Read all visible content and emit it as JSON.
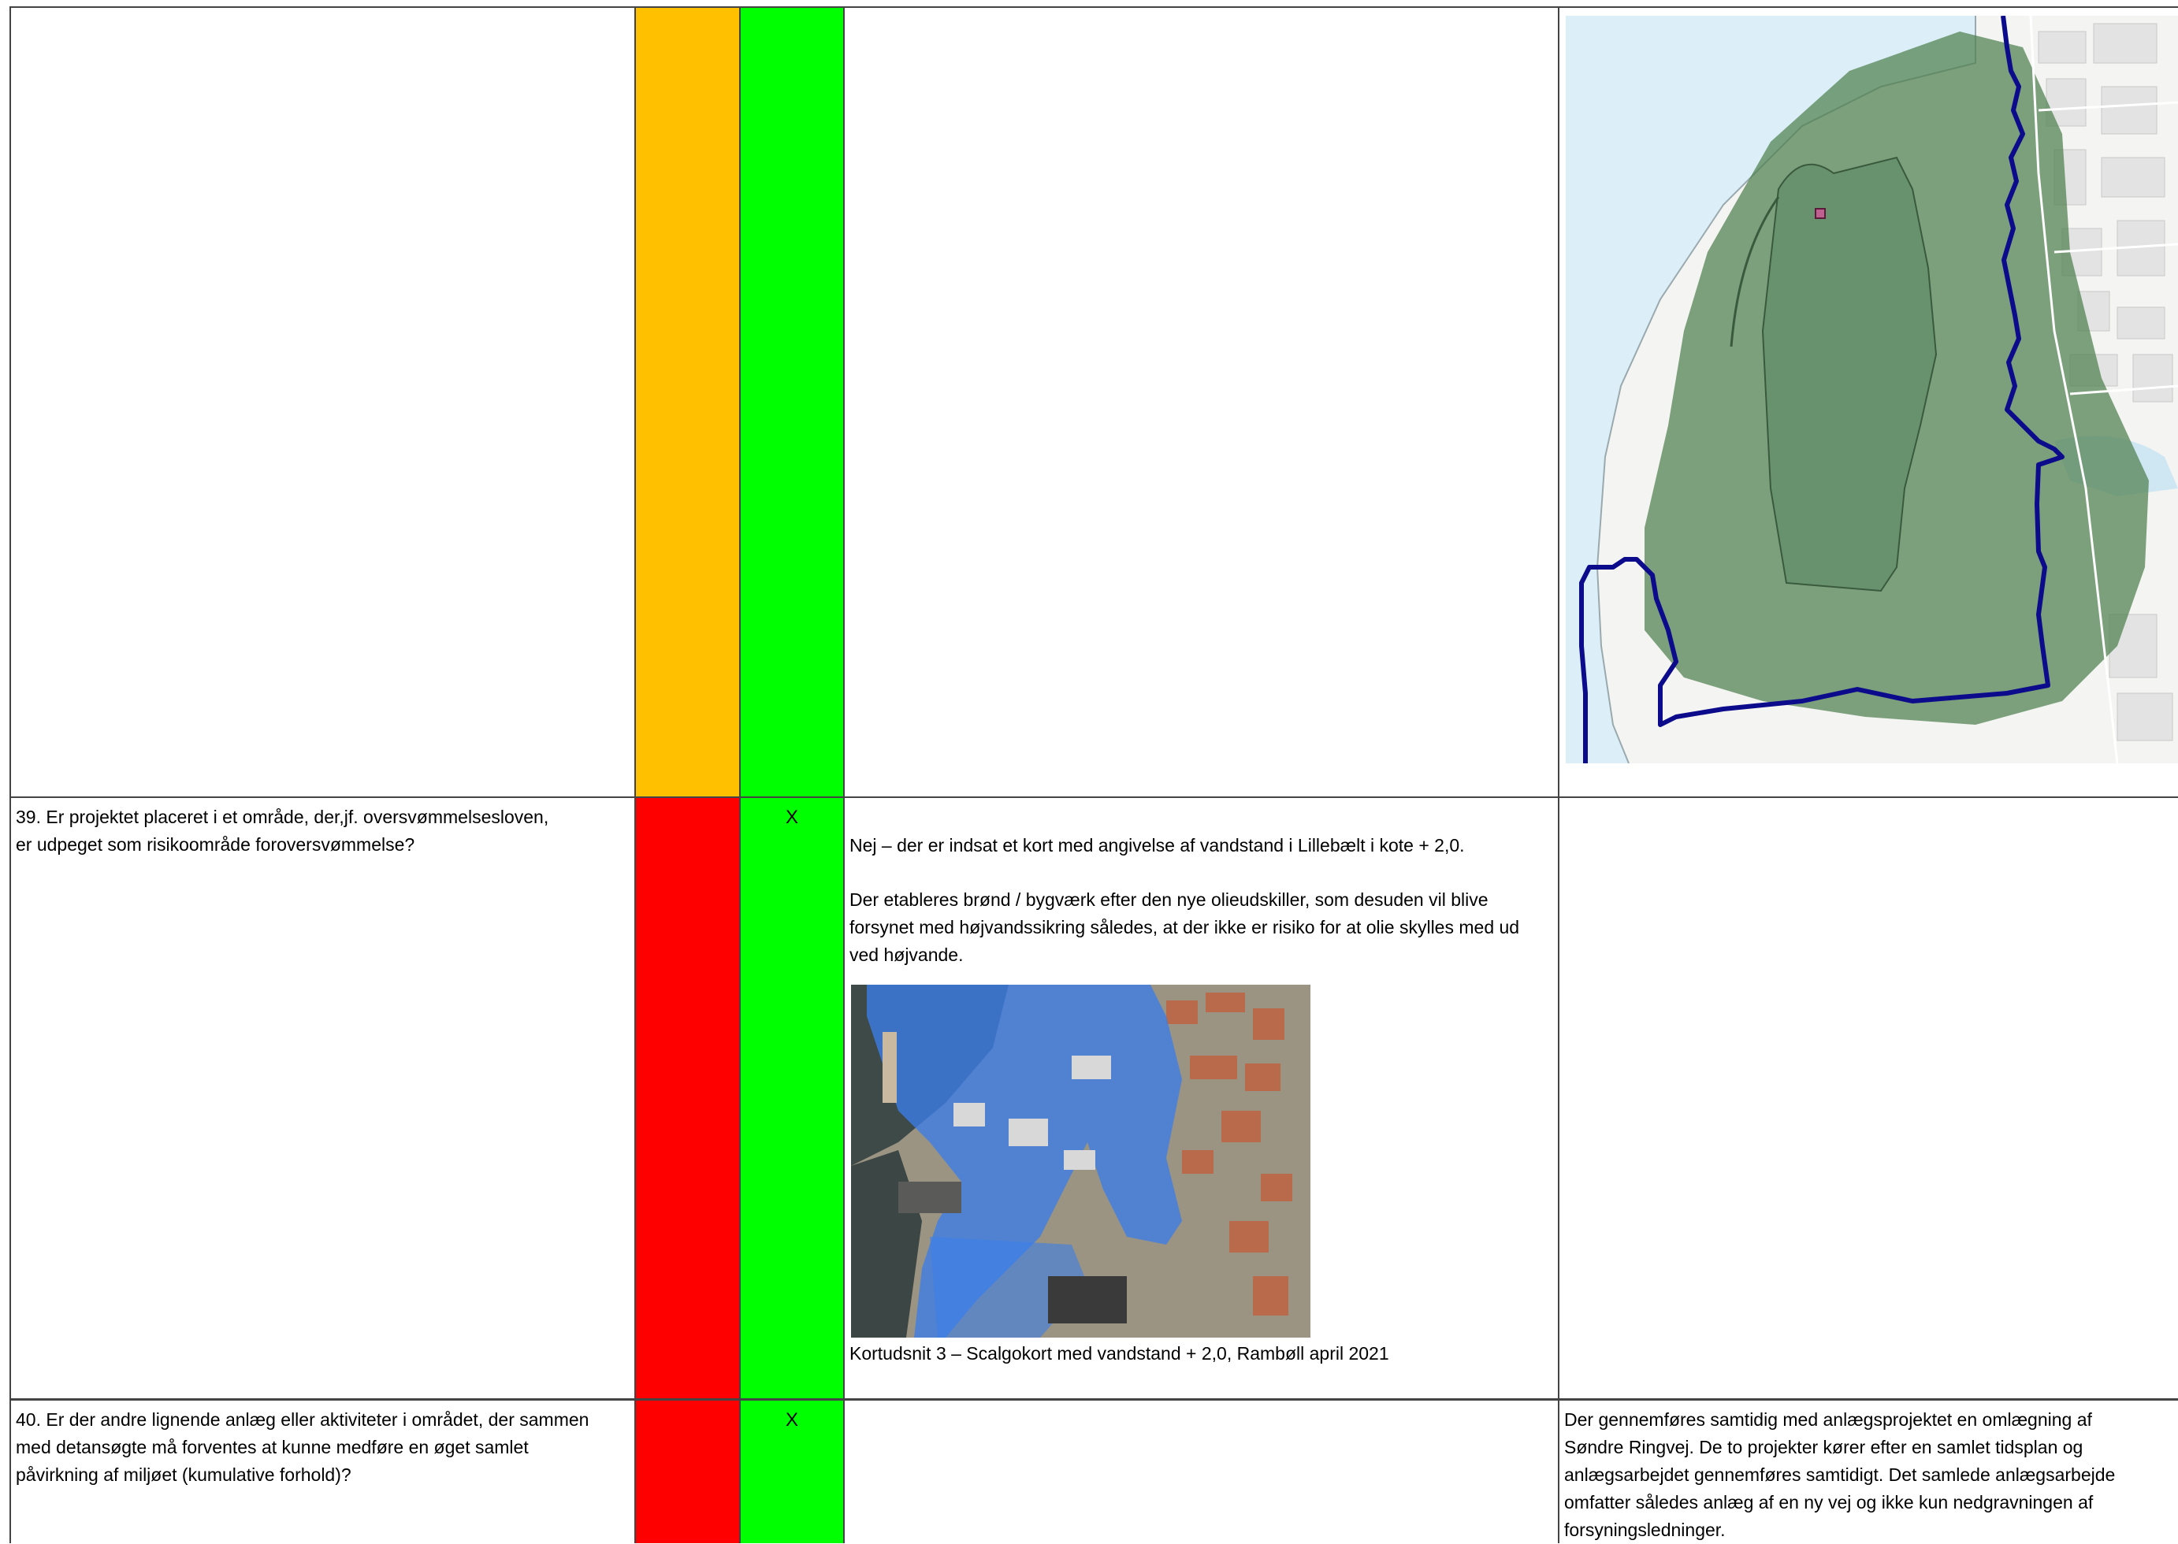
{
  "colors": {
    "amber": "#FFC000",
    "red": "#FF0000",
    "green": "#00FF00",
    "boundary": "#0B0B8C",
    "flood_zone": "#4E7F4E",
    "water": "#DCEFF8"
  },
  "rows": [
    {
      "id": "row-38-continued",
      "question": "",
      "mark": "",
      "comment": [],
      "map_kind": "risk-area-map"
    },
    {
      "id": "row-39",
      "question_lines": [
        "39. Er projektet placeret i et område, der,jf. oversvømmelsesloven,",
        "er udpeget som risikoområde foroversvømmelse?"
      ],
      "mark": "X",
      "comment_paragraphs": [
        [
          "Nej – der er indsat et kort med angivelse af vandstand i Lillebælt i kote + 2,0."
        ],
        [
          "Der etableres brønd / bygværk efter den nye olieudskiller, som desuden vil blive",
          "forsynet med højvandssikring således, at der ikke er risiko for at olie skylles med ud",
          "ved højvande."
        ]
      ],
      "figure_caption": "Kortudsnit 3 – Scalgokort med vandstand + 2,0, Rambøll april 2021"
    },
    {
      "id": "row-40",
      "question_lines": [
        "40. Er der andre lignende anlæg eller aktiviteter i området, der sammen",
        "med detansøgte må forventes at kunne medføre en øget samlet",
        "påvirkning af miljøet (kumulative forhold)?"
      ],
      "mark": "X",
      "remark_lines": [
        "Der gennemføres samtidig med anlægsprojektet en omlægning af",
        "Søndre Ringvej. De to projekter kører efter en samlet tidsplan og",
        "anlægsarbejdet gennemføres samtidigt. Det samlede anlægsarbejde",
        "omfatter således anlæg af en ny vej og ikke kun nedgravningen af",
        "forsyningsledninger."
      ]
    }
  ]
}
